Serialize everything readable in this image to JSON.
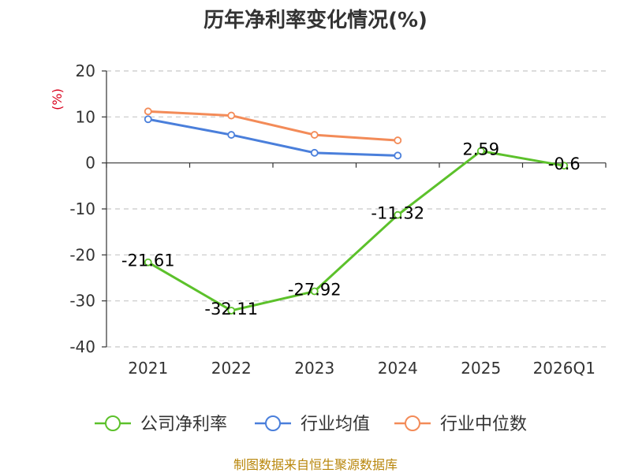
{
  "chart_data": {
    "type": "line",
    "title": "历年净利率变化情况(%)",
    "ylabel": "(%)",
    "xlabel": "",
    "categories": [
      "2021",
      "2022",
      "2023",
      "2024",
      "2025",
      "2026Q1"
    ],
    "ylim": [
      -40,
      20
    ],
    "yticks": [
      20,
      10,
      0,
      -10,
      -20,
      -30,
      -40
    ],
    "grid": true,
    "legend_position": "bottom",
    "series": [
      {
        "name": "公司净利率",
        "color": "#5cc12b",
        "values": [
          -21.61,
          -32.11,
          -27.92,
          -11.32,
          2.59,
          -0.6
        ],
        "labels": [
          "-21.61",
          "-32.11",
          "-27.92",
          "-11.32",
          "2.59",
          "-0.6"
        ]
      },
      {
        "name": "行业均值",
        "color": "#4a7fdb",
        "values": [
          9.5,
          6.1,
          2.2,
          1.6,
          null,
          null
        ]
      },
      {
        "name": "行业中位数",
        "color": "#f38b58",
        "values": [
          11.2,
          10.3,
          6.1,
          4.9,
          null,
          null
        ]
      }
    ]
  },
  "source_text": "制图数据来自恒生聚源数据库"
}
